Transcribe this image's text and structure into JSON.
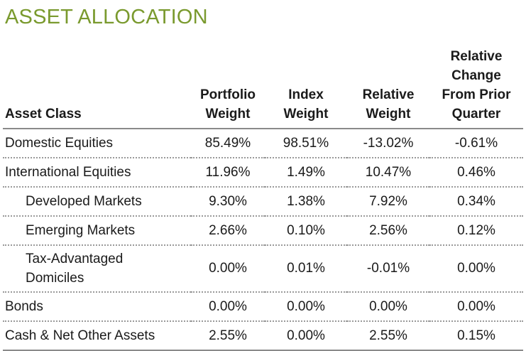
{
  "title": "ASSET ALLOCATION",
  "colors": {
    "title": "#7a9a2e",
    "rule": "#8a8a8a"
  },
  "headers": {
    "asset_class": "Asset Class",
    "portfolio_weight": [
      "Portfolio",
      "Weight"
    ],
    "index_weight": [
      "Index",
      "Weight"
    ],
    "relative_weight": [
      "Relative",
      "Weight"
    ],
    "relative_change": [
      "Relative",
      "Change",
      "From Prior",
      "Quarter"
    ]
  },
  "rows": [
    {
      "name": "Domestic Equities",
      "portfolio": "85.49%",
      "index": "98.51%",
      "relative": "-13.02%",
      "change": "-0.61%"
    },
    {
      "name": "International Equities",
      "portfolio": "11.96%",
      "index": "1.49%",
      "relative": "10.47%",
      "change": "0.46%"
    },
    {
      "name": "Developed Markets",
      "portfolio": "9.30%",
      "index": "1.38%",
      "relative": "7.92%",
      "change": "0.34%"
    },
    {
      "name": "Emerging Markets",
      "portfolio": "2.66%",
      "index": "0.10%",
      "relative": "2.56%",
      "change": "0.12%"
    },
    {
      "name_lines": [
        "Tax-Advantaged",
        "Domiciles"
      ],
      "portfolio": "0.00%",
      "index": "0.01%",
      "relative": "-0.01%",
      "change": "0.00%"
    },
    {
      "name": "Bonds",
      "portfolio": "0.00%",
      "index": "0.00%",
      "relative": "0.00%",
      "change": "0.00%"
    },
    {
      "name": "Cash & Net Other Assets",
      "portfolio": "2.55%",
      "index": "0.00%",
      "relative": "2.55%",
      "change": "0.15%"
    }
  ]
}
